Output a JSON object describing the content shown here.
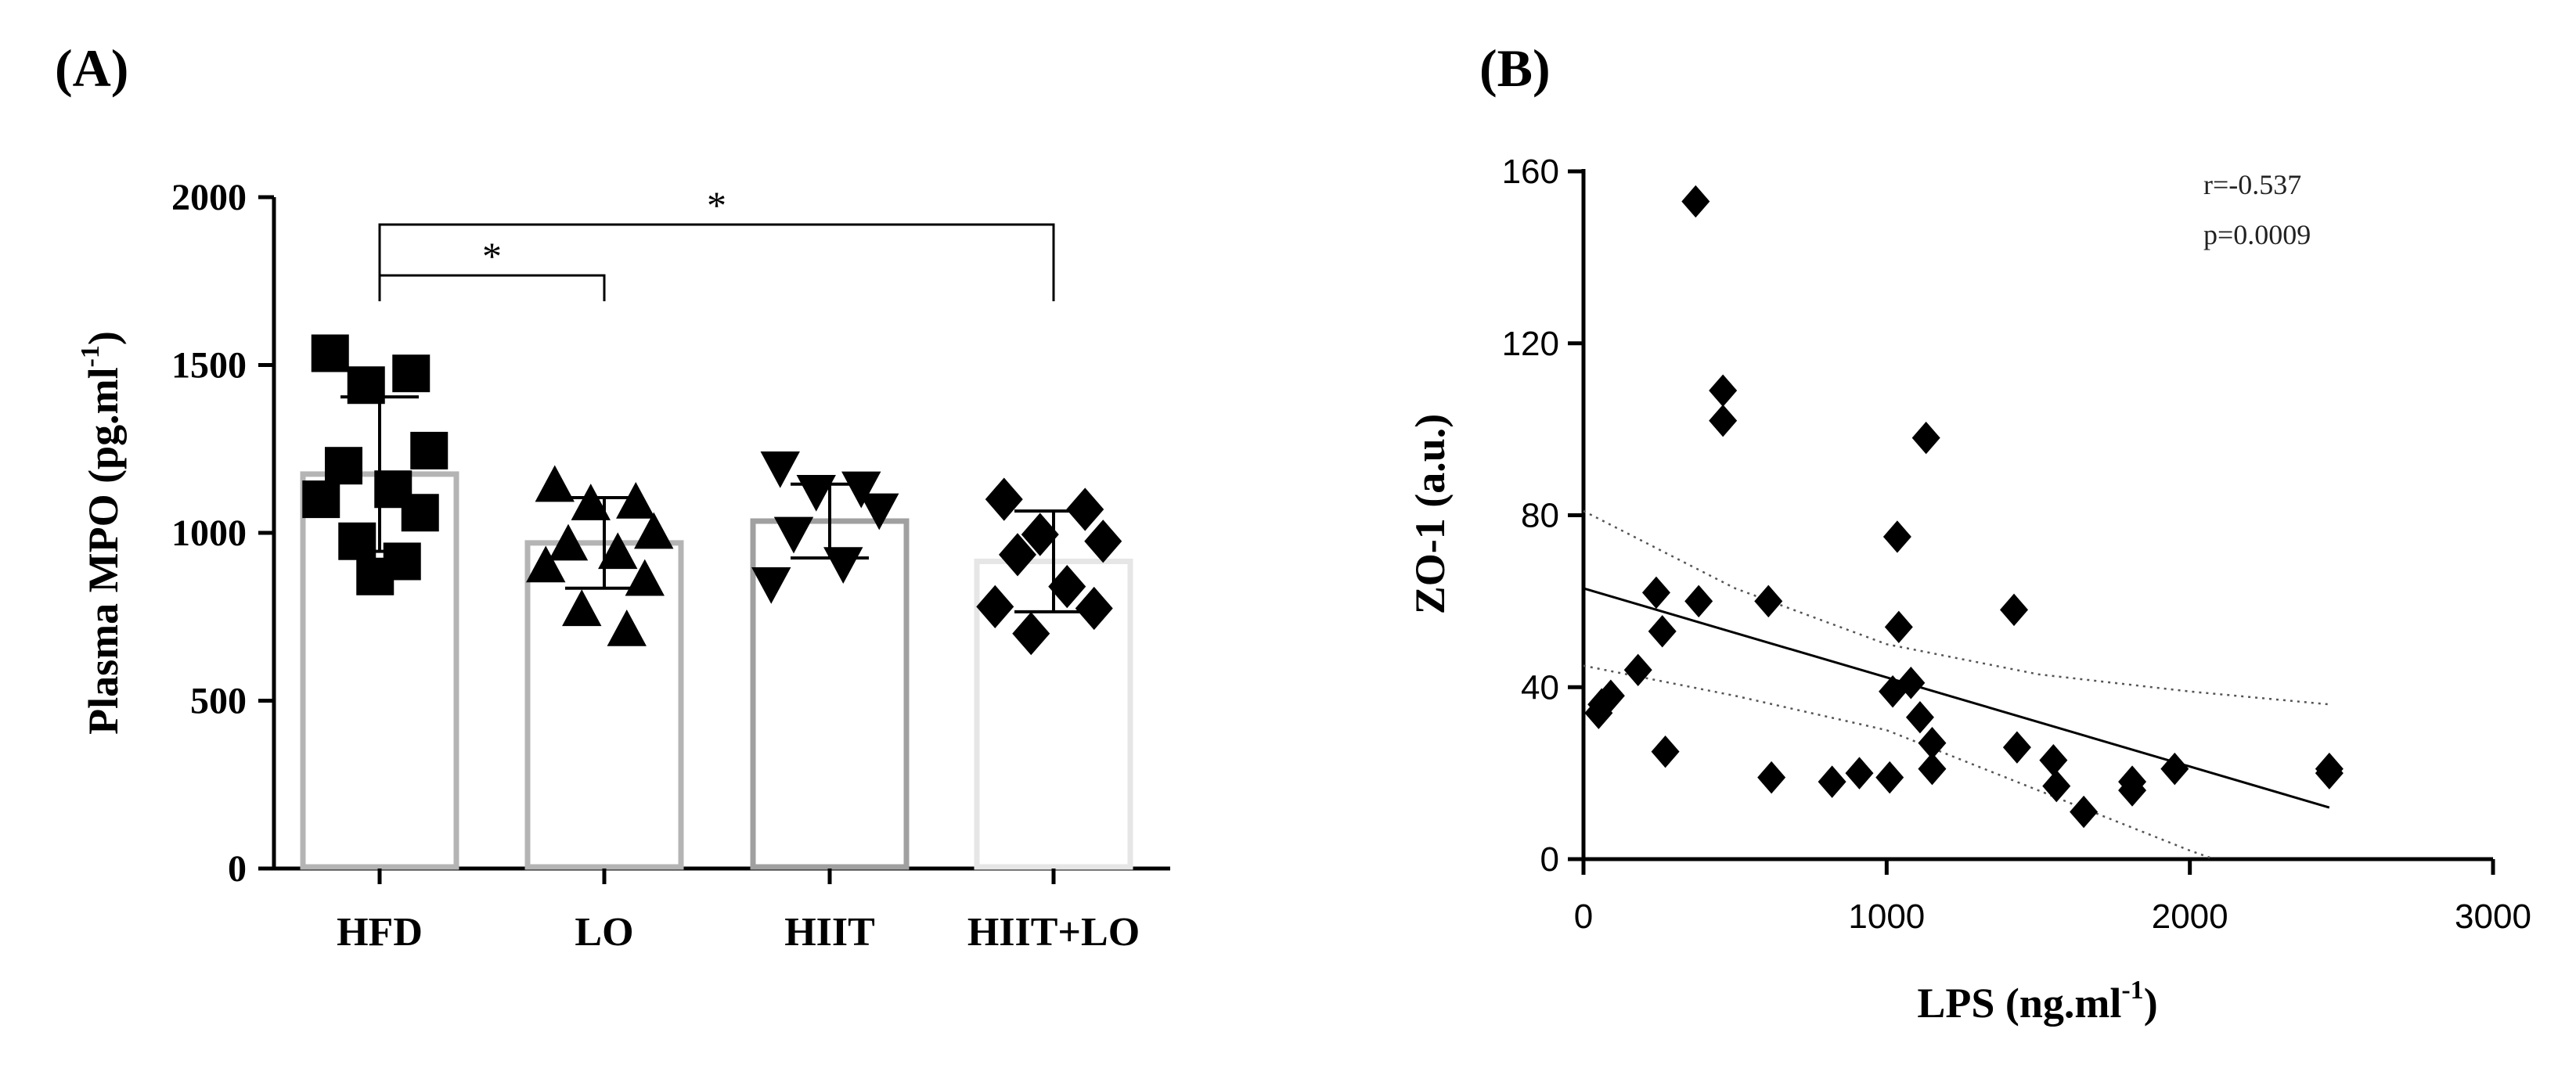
{
  "chart_data": [
    {
      "panel": "(A)",
      "type": "bar",
      "ylabel": "Plasma MPO (pg.ml",
      "ylabel_sup": "-1",
      "ylabel_close": ")",
      "ylim": [
        0,
        2000
      ],
      "yticks": [
        0,
        500,
        1000,
        1500,
        2000
      ],
      "categories": [
        "HFD",
        "LO",
        "HIIT",
        "HIIT+LO"
      ],
      "means": [
        1175,
        970,
        1035,
        915
      ],
      "sd": [
        230,
        135,
        110,
        150
      ],
      "bar_colors": [
        "#b4b4b4",
        "#b4b4b4",
        "#a0a0a0",
        "#e6e6e6"
      ],
      "markers": [
        "square",
        "triangle-up",
        "triangle-down",
        "diamond"
      ],
      "points": [
        [
          1535,
          1475,
          1440,
          1245,
          1200,
          1130,
          1100,
          1060,
          975,
          915,
          870
        ],
        [
          1140,
          1090,
          1085,
          1000,
          965,
          940,
          900,
          860,
          770,
          710
        ],
        [
          1195,
          1135,
          1125,
          1070,
          1000,
          910,
          850
        ],
        [
          1100,
          1070,
          995,
          975,
          935,
          840,
          780,
          775,
          700
        ]
      ],
      "significance": [
        {
          "from": "HFD",
          "to": "LO",
          "label": "*"
        },
        {
          "from": "HFD",
          "to": "HIIT+LO",
          "label": "*"
        }
      ]
    },
    {
      "panel": "(B)",
      "type": "scatter",
      "xlabel": "LPS (ng.ml",
      "xlabel_sup": "-1",
      "xlabel_close": ")",
      "ylabel": "ZO-1 (a.u.)",
      "xlim": [
        0,
        3000
      ],
      "ylim": [
        0,
        160
      ],
      "xticks": [
        0,
        1000,
        2000,
        3000
      ],
      "yticks": [
        0,
        40,
        80,
        120,
        160
      ],
      "stats": [
        "r=-0.537",
        "p=0.0009"
      ],
      "points": [
        [
          370,
          153
        ],
        [
          460,
          109
        ],
        [
          460,
          102
        ],
        [
          1130,
          98
        ],
        [
          1035,
          75
        ],
        [
          240,
          62
        ],
        [
          380,
          60
        ],
        [
          610,
          60
        ],
        [
          1420,
          58
        ],
        [
          260,
          53
        ],
        [
          1040,
          54
        ],
        [
          180,
          44
        ],
        [
          1080,
          41
        ],
        [
          1020,
          39
        ],
        [
          90,
          38
        ],
        [
          60,
          36
        ],
        [
          50,
          34
        ],
        [
          1110,
          33
        ],
        [
          1150,
          27
        ],
        [
          1430,
          26
        ],
        [
          270,
          25
        ],
        [
          1550,
          23
        ],
        [
          1950,
          21
        ],
        [
          1150,
          21
        ],
        [
          910,
          20
        ],
        [
          620,
          19
        ],
        [
          1010,
          19
        ],
        [
          2460,
          20
        ],
        [
          2460,
          21
        ],
        [
          820,
          18
        ],
        [
          1810,
          18
        ],
        [
          1560,
          17
        ],
        [
          1810,
          16
        ],
        [
          1650,
          11
        ]
      ],
      "regression": {
        "x": [
          0,
          2460
        ],
        "y": [
          63,
          12
        ]
      },
      "ci_upper": {
        "x": [
          0,
          500,
          1000,
          1500,
          2000,
          2460
        ],
        "y": [
          81,
          63,
          50,
          43,
          39,
          36
        ]
      },
      "ci_lower": {
        "x": [
          0,
          500,
          1000,
          1500,
          2000,
          2080
        ],
        "y": [
          45,
          38,
          30,
          16,
          2,
          0
        ]
      }
    }
  ]
}
